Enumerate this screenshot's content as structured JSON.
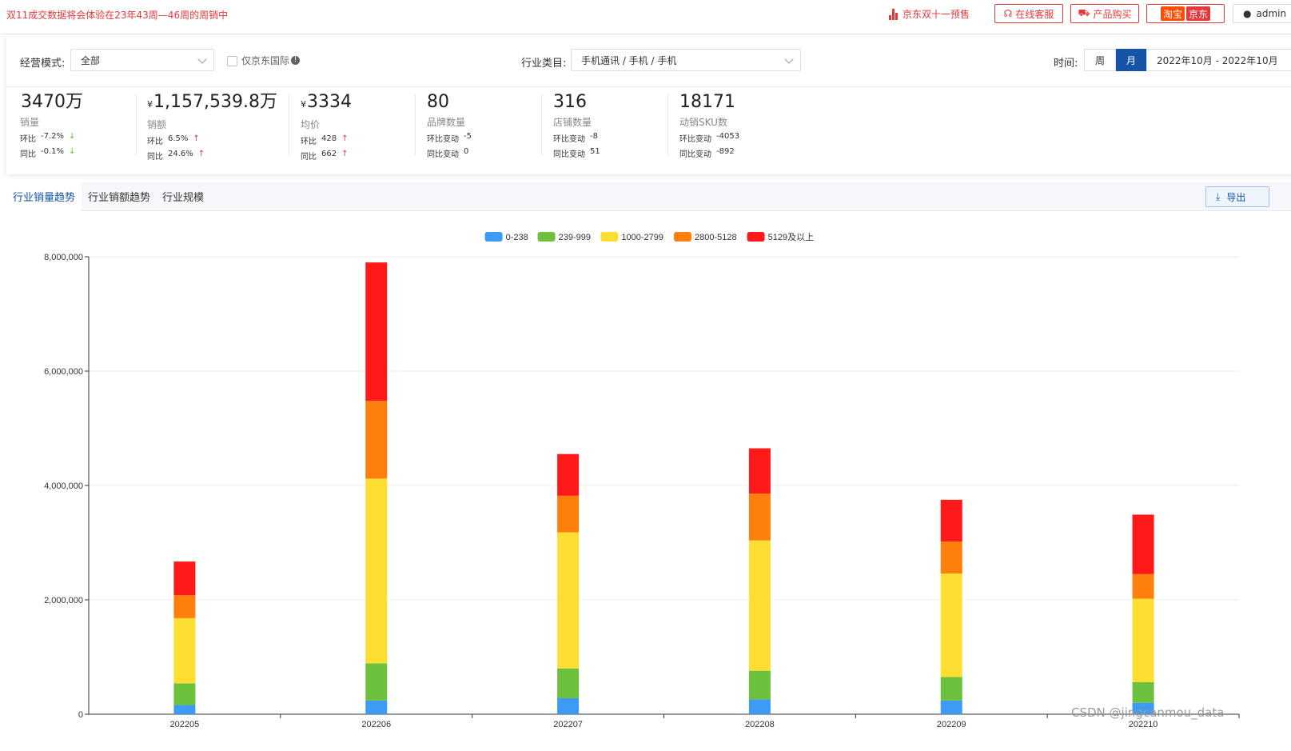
{
  "topbar": {
    "notice": "双11成交数据将会体验在23年43周—46周的周销中",
    "jd1111_label": "京东双十一预售",
    "service_label": "在线客服",
    "buy_label": "产品购买",
    "taobao_label": "淘宝",
    "jd_label": "京东",
    "user_label": "admin"
  },
  "filters": {
    "mode_label": "经营模式:",
    "mode_value": "全部",
    "intl_only_label": "仅京东国际",
    "category_label": "行业类目:",
    "category_value": "手机通讯 / 手机 / 手机",
    "time_label": "时间:",
    "period_week": "周",
    "period_month": "月",
    "date_range": "2022年10月 - 2022年10月"
  },
  "metrics": [
    {
      "value": "3470万",
      "currency": "",
      "name": "销量",
      "r1_label": "环比",
      "r1_value": "-7.2%",
      "r1_arrow": "↓",
      "r2_label": "同比",
      "r2_value": "-0.1%",
      "r2_arrow": "↓"
    },
    {
      "value": "1,157,539.8万",
      "currency": "¥",
      "name": "销额",
      "r1_label": "环比",
      "r1_value": "6.5%",
      "r1_arrow": "↑",
      "r2_label": "同比",
      "r2_value": "24.6%",
      "r2_arrow": "↑"
    },
    {
      "value": "3334",
      "currency": "¥",
      "name": "均价",
      "r1_label": "环比",
      "r1_value": "428",
      "r1_arrow": "↑",
      "r2_label": "同比",
      "r2_value": "662",
      "r2_arrow": "↑"
    },
    {
      "value": "80",
      "currency": "",
      "name": "品牌数量",
      "r1_label": "环比变动",
      "r1_value": "-5",
      "r1_arrow": "",
      "r2_label": "同比变动",
      "r2_value": "0",
      "r2_arrow": ""
    },
    {
      "value": "316",
      "currency": "",
      "name": "店铺数量",
      "r1_label": "环比变动",
      "r1_value": "-8",
      "r1_arrow": "",
      "r2_label": "同比变动",
      "r2_value": "51",
      "r2_arrow": ""
    },
    {
      "value": "18171",
      "currency": "",
      "name": "动销SKU数",
      "r1_label": "环比变动",
      "r1_value": "-4053",
      "r1_arrow": "",
      "r2_label": "同比变动",
      "r2_value": "-892",
      "r2_arrow": ""
    }
  ],
  "tabs": {
    "volume": "行业销量趋势",
    "sales": "行业销额趋势",
    "scale": "行业规模",
    "export": "导出"
  },
  "colors": {
    "brand_blue": "#1554a6",
    "accent_red": "#e4393c"
  },
  "chart_data": {
    "type": "bar",
    "stacked": true,
    "categories": [
      "202205",
      "202206",
      "202207",
      "202208",
      "202209",
      "202210"
    ],
    "series": [
      {
        "name": "0-238",
        "color": "#3e9bf5",
        "values": [
          160000,
          240000,
          280000,
          260000,
          240000,
          200000
        ]
      },
      {
        "name": "239-999",
        "color": "#6cc13c",
        "values": [
          380000,
          650000,
          520000,
          500000,
          410000,
          360000
        ]
      },
      {
        "name": "1000-2799",
        "color": "#ffde33",
        "values": [
          1140000,
          3230000,
          2380000,
          2280000,
          1810000,
          1460000
        ]
      },
      {
        "name": "2800-5128",
        "color": "#ff7f0e",
        "values": [
          400000,
          1360000,
          640000,
          820000,
          560000,
          430000
        ]
      },
      {
        "name": "5129及以上",
        "color": "#ff1a1a",
        "values": [
          590000,
          2420000,
          730000,
          790000,
          730000,
          1040000
        ]
      }
    ],
    "ylim": [
      0,
      8000000
    ],
    "yticks": [
      "0",
      "2,000,000",
      "4,000,000",
      "6,000,000",
      "8,000,000"
    ],
    "ytick_values": [
      0,
      2000000,
      4000000,
      6000000,
      8000000
    ],
    "legend": "top-center",
    "grid": true
  },
  "watermark": "CSDN @jingcanmou_data"
}
